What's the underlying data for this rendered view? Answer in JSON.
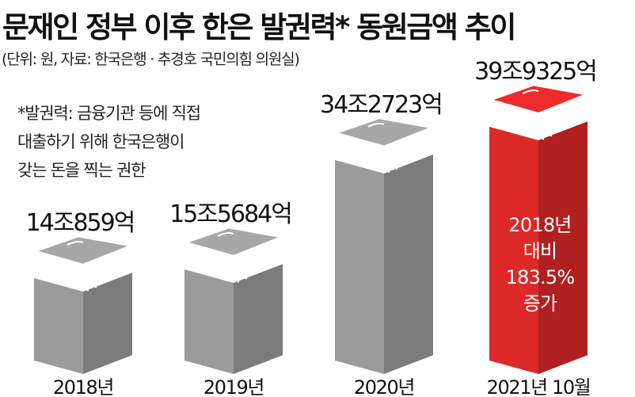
{
  "title": "문재인 정부 이후 한은 발권력* 동원금액 추이",
  "source": "(단위: 원, 자료: 한국은행 · 추경호 국민의힘 의원실)",
  "note": [
    "*발권력: 금융기관 등에 직접",
    "대출하기 위해 한국은행이",
    "갖는 돈을 찍는 권한"
  ],
  "colors": {
    "bar": "#a7a7a7",
    "highlight": "#ee2b2b"
  },
  "chart_data": {
    "type": "bar",
    "categories": [
      "2018년",
      "2019년",
      "2020년",
      "2021년 10월"
    ],
    "values": [
      140859,
      155684,
      342723,
      399325
    ],
    "value_unit": "억원",
    "value_labels": [
      "14조859억",
      "15조5684억",
      "34조2723억",
      "39조9325억"
    ],
    "highlight_index": 3,
    "annotation": [
      "2018년",
      "대비",
      "183.5%",
      "증가"
    ],
    "ylim": [
      0,
      399325
    ]
  }
}
